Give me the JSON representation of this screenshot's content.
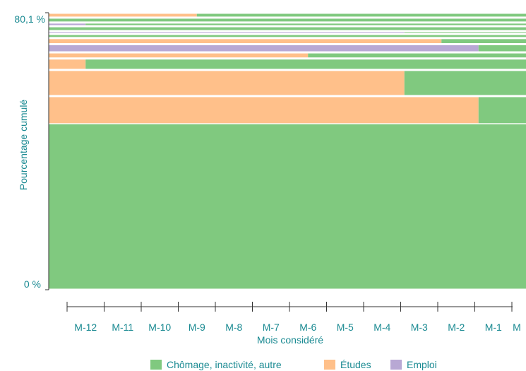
{
  "chart_data": {
    "type": "bar",
    "orientation": "horizontal-timeline",
    "ylabel": "Pourcentage cumulé",
    "xlabel": "Mois considéré",
    "y_tick_top": "80,1 %",
    "y_tick_bottom": "0 %",
    "months": [
      "M-12",
      "M-11",
      "M-10",
      "M-9",
      "M-8",
      "M-7",
      "M-6",
      "M-5",
      "M-4",
      "M-3",
      "M-2",
      "M-1",
      "M"
    ],
    "colors": {
      "chomage": "#80c97f",
      "etudes": "#ffc08a",
      "emploi": "#b8a8d4"
    },
    "legend": [
      {
        "key": "chomage",
        "label": "Chômage, inactivité, autre"
      },
      {
        "key": "etudes",
        "label": "Études"
      },
      {
        "key": "emploi",
        "label": "Emploi"
      }
    ],
    "legend_position": "bottom",
    "rows": [
      {
        "share": 40.5,
        "segments": [
          {
            "key": "chomage",
            "end_month": 13
          }
        ]
      },
      {
        "share": 6.9,
        "segments": [
          {
            "key": "etudes",
            "end_month": 11.6
          },
          {
            "key": "chomage",
            "end_month": 13
          }
        ]
      },
      {
        "share": 6.4,
        "segments": [
          {
            "key": "etudes",
            "end_month": 9.6
          },
          {
            "key": "chomage",
            "end_month": 13
          }
        ]
      },
      {
        "share": 2.8,
        "segments": [
          {
            "key": "etudes",
            "end_month": 1
          },
          {
            "key": "chomage",
            "end_month": 13
          }
        ]
      },
      {
        "share": 1.5,
        "segments": [
          {
            "key": "etudes",
            "end_month": 7
          },
          {
            "key": "chomage",
            "end_month": 13
          }
        ]
      },
      {
        "share": 2.0,
        "segments": [
          {
            "key": "emploi",
            "end_month": 11.6
          },
          {
            "key": "chomage",
            "end_month": 13
          }
        ]
      },
      {
        "share": 1.5,
        "segments": [
          {
            "key": "etudes",
            "end_month": 10.6
          },
          {
            "key": "chomage",
            "end_month": 13
          }
        ]
      },
      {
        "share": 1.0,
        "segments": [
          {
            "key": "chomage",
            "end_month": 13
          }
        ]
      },
      {
        "share": 0.7,
        "segments": [
          {
            "key": "emploi",
            "end_month": 9.6
          },
          {
            "key": "chomage",
            "end_month": 13
          }
        ]
      },
      {
        "share": 1.2,
        "segments": [
          {
            "key": "chomage",
            "end_month": 13
          }
        ]
      },
      {
        "share": 0.9,
        "segments": [
          {
            "key": "emploi",
            "end_month": 1
          },
          {
            "key": "chomage",
            "end_month": 13
          }
        ]
      },
      {
        "share": 1.2,
        "segments": [
          {
            "key": "chomage",
            "end_month": 13
          }
        ]
      },
      {
        "share": 1.2,
        "segments": [
          {
            "key": "etudes",
            "end_month": 4
          },
          {
            "key": "chomage",
            "end_month": 13
          }
        ]
      }
    ]
  }
}
